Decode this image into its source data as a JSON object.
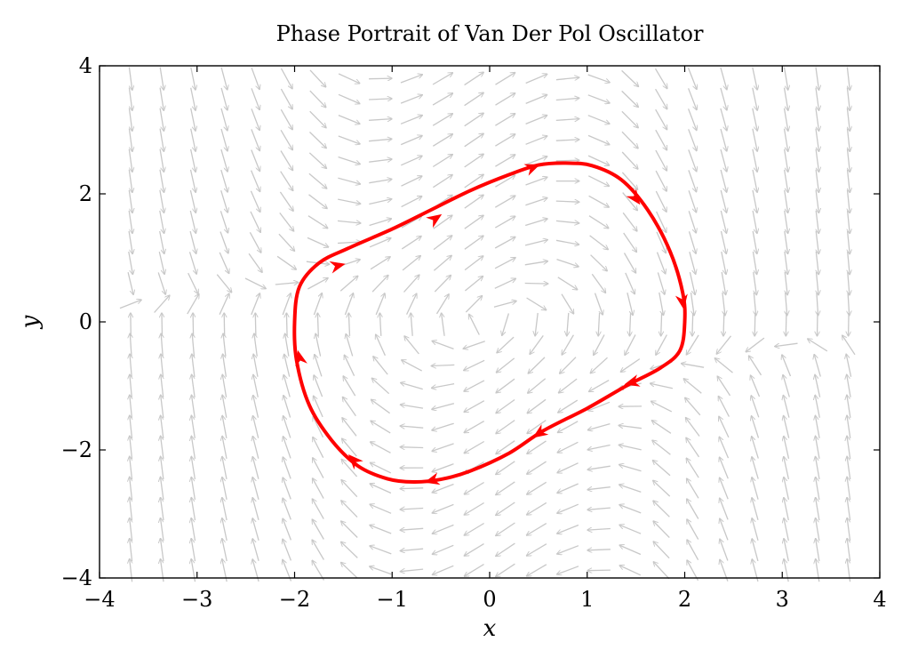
{
  "chart_data": {
    "type": "vector-field",
    "title": "Phase Portrait of Van Der Pol Oscillator",
    "xlabel": "x",
    "ylabel": "y",
    "xlim": [
      -4,
      4
    ],
    "ylim": [
      -4,
      4
    ],
    "x_ticks": [
      -4,
      -3,
      -2,
      -1,
      0,
      1,
      2,
      3,
      4
    ],
    "y_ticks": [
      -4,
      -2,
      0,
      2,
      4
    ],
    "x_tick_labels": [
      "−4",
      "−3",
      "−2",
      "−1",
      "0",
      "1",
      "2",
      "3",
      "4"
    ],
    "y_tick_labels": [
      "−4",
      "−2",
      "0",
      "2",
      "4"
    ],
    "grid": false,
    "field": {
      "mu": 1,
      "step": 0.32,
      "color": "#c8c8c8"
    },
    "limit_cycle": {
      "color": "#ff0000",
      "points": [
        [
          -2.0,
          0.0
        ],
        [
          -1.98,
          -0.6
        ],
        [
          -1.85,
          -1.3
        ],
        [
          -1.62,
          -1.85
        ],
        [
          -1.35,
          -2.25
        ],
        [
          -1.05,
          -2.45
        ],
        [
          -0.78,
          -2.5
        ],
        [
          -0.5,
          -2.46
        ],
        [
          -0.2,
          -2.33
        ],
        [
          0.2,
          -2.05
        ],
        [
          0.55,
          -1.7
        ],
        [
          1.0,
          -1.35
        ],
        [
          1.4,
          -1.0
        ],
        [
          1.75,
          -0.72
        ],
        [
          1.95,
          -0.45
        ],
        [
          2.0,
          0.0
        ],
        [
          1.98,
          0.45
        ],
        [
          1.85,
          1.1
        ],
        [
          1.62,
          1.75
        ],
        [
          1.35,
          2.22
        ],
        [
          1.05,
          2.44
        ],
        [
          0.78,
          2.48
        ],
        [
          0.5,
          2.45
        ],
        [
          0.2,
          2.3
        ],
        [
          -0.2,
          2.05
        ],
        [
          -0.6,
          1.75
        ],
        [
          -1.0,
          1.45
        ],
        [
          -1.45,
          1.15
        ],
        [
          -1.75,
          0.92
        ],
        [
          -1.95,
          0.55
        ],
        [
          -2.0,
          0.0
        ]
      ],
      "arrow_points": [
        [
          -1.95,
          -0.55
        ],
        [
          -1.4,
          -2.15
        ],
        [
          -0.6,
          -2.48
        ],
        [
          0.5,
          -1.75
        ],
        [
          1.45,
          -0.95
        ],
        [
          1.98,
          0.3
        ],
        [
          1.5,
          1.92
        ],
        [
          0.45,
          2.42
        ],
        [
          -0.55,
          1.62
        ],
        [
          -1.55,
          0.88
        ]
      ]
    }
  }
}
